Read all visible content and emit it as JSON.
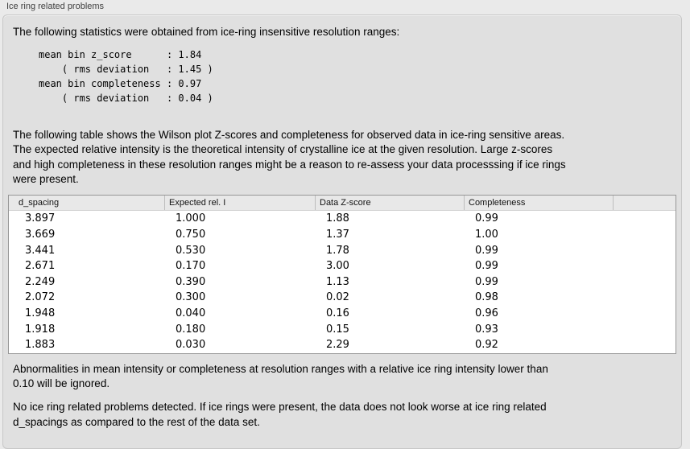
{
  "panel": {
    "label": "Ice ring related problems"
  },
  "intro": {
    "text": "The following statistics were obtained from ice-ring insensitive resolution ranges:"
  },
  "stats_block": {
    "text": "mean bin z_score      : 1.84\n    ( rms deviation   : 1.45 )\nmean bin completeness : 0.97\n    ( rms deviation   : 0.04 )"
  },
  "table_description": {
    "text": "The following table shows the Wilson plot Z-scores and completeness for observed data in ice-ring sensitive areas.\nThe expected relative intensity is the theoretical intensity of crystalline ice at the given resolution. Large z-scores\nand high completeness in these resolution ranges might be a reason to re-assess your data processsing if ice rings\nwere present."
  },
  "table": {
    "columns": [
      "d_spacing",
      "Expected rel. I",
      "Data Z-score",
      "Completeness",
      ""
    ],
    "rows": [
      [
        "3.897",
        "1.000",
        "1.88",
        "0.99"
      ],
      [
        "3.669",
        "0.750",
        "1.37",
        "1.00"
      ],
      [
        "3.441",
        "0.530",
        "1.78",
        "0.99"
      ],
      [
        "2.671",
        "0.170",
        "3.00",
        "0.99"
      ],
      [
        "2.249",
        "0.390",
        "1.13",
        "0.99"
      ],
      [
        "2.072",
        "0.300",
        "0.02",
        "0.98"
      ],
      [
        "1.948",
        "0.040",
        "0.16",
        "0.96"
      ],
      [
        "1.918",
        "0.180",
        "0.15",
        "0.93"
      ],
      [
        "1.883",
        "0.030",
        "2.29",
        "0.92"
      ]
    ]
  },
  "notes": {
    "ignore_note": "Abnormalities in mean intensity or completeness at resolution ranges with a relative ice ring intensity lower than\n0.10 will be ignored.",
    "conclusion": "No ice ring related problems detected. If ice rings were present, the data does not look worse at ice ring related\nd_spacings as compared to the rest of the data set."
  },
  "colors": {
    "page_background": "#eaeaea",
    "box_background": "#e0e0e0",
    "box_border": "#c7c7c7",
    "table_border": "#979797",
    "table_header_background": "#e8e8e8",
    "table_body_background": "#ffffff",
    "text": "#000000",
    "label_text": "#3f3f3f"
  }
}
